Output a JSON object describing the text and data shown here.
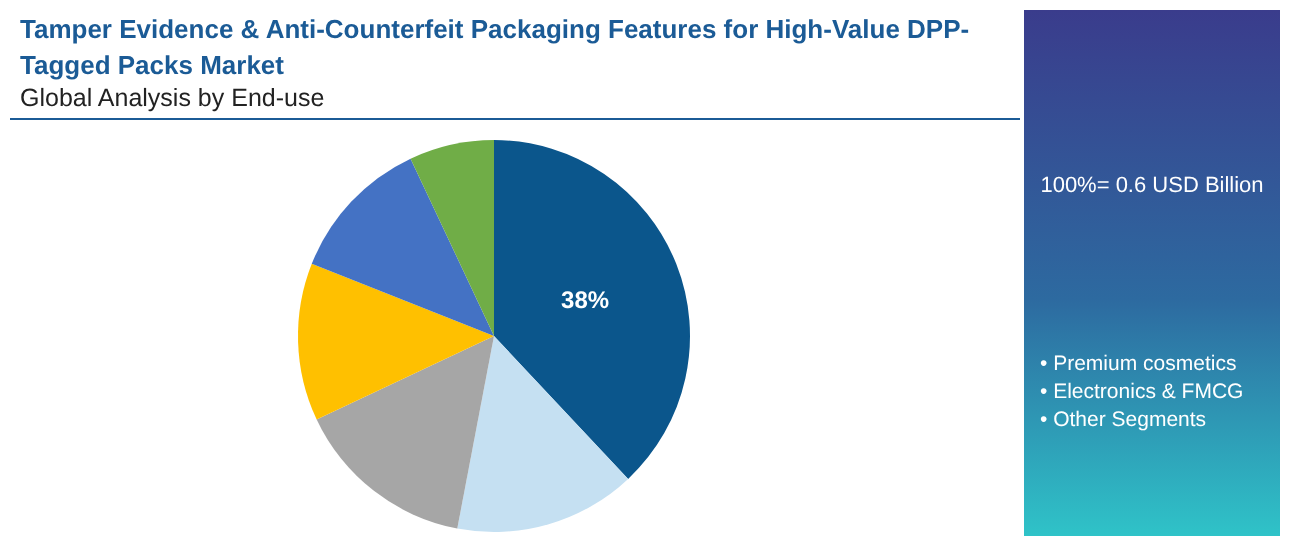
{
  "chart_data": {
    "type": "pie",
    "title": "Tamper Evidence & Anti-Counterfeit Packaging Features for High-Value DPP-Tagged Packs Market",
    "subtitle": "Global Analysis by End-use",
    "categories": [
      null,
      null,
      null,
      null,
      null,
      null
    ],
    "values": [
      38,
      15,
      15,
      13,
      12,
      7
    ],
    "colors": [
      "#0b568c",
      "#c5e0f2",
      "#a6a6a6",
      "#ffc000",
      "#4472c4",
      "#70ad47"
    ],
    "value_labels": [
      "38%",
      null,
      null,
      null,
      null,
      null
    ],
    "annotations": [
      "100%= 0.6 USD Billion",
      "• Premium cosmetics",
      "• Electronics & FMCG",
      "• Other Segments"
    ]
  }
}
